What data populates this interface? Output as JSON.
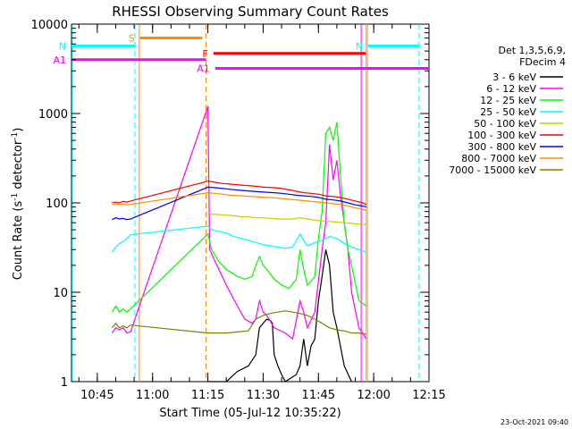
{
  "chart_data": {
    "type": "line",
    "title": "RHESSI Observing Summary Count Rates",
    "xlabel": "Start Time (05-Jul-12 10:35:22)",
    "ylabel": "Count Rate (s",
    "ylabel_sup": "-1",
    "ylabel_mid": " detector",
    "ylabel_sup2": "-1",
    "ylabel_end": ")",
    "yscale": "log",
    "ylim": [
      1,
      10000
    ],
    "xlim_min": [
      38,
      135
    ],
    "x_ticks": [
      {
        "min": 45,
        "label": "10:45"
      },
      {
        "min": 60,
        "label": "11:00"
      },
      {
        "min": 75,
        "label": "11:15"
      },
      {
        "min": 90,
        "label": "11:30"
      },
      {
        "min": 105,
        "label": "11:45"
      },
      {
        "min": 120,
        "label": "12:00"
      },
      {
        "min": 135,
        "label": "12:15"
      }
    ],
    "y_ticks": [
      {
        "v": 1,
        "label": "1"
      },
      {
        "v": 10,
        "label": "10"
      },
      {
        "v": 100,
        "label": "100"
      },
      {
        "v": 1000,
        "label": "1000"
      },
      {
        "v": 10000,
        "label": "10000"
      }
    ],
    "legend_header": [
      "Det 1,3,5,6,9,",
      "FDecim 4"
    ],
    "legend_placement": "right",
    "series": [
      {
        "name": "3 - 6 keV",
        "color": "#000000",
        "points": [
          [
            38,
            null
          ],
          [
            74.7,
            null
          ],
          [
            75,
            1
          ],
          [
            77,
            1
          ],
          [
            80,
            1
          ],
          [
            83,
            1.3
          ],
          [
            86,
            1.5
          ],
          [
            88,
            2
          ],
          [
            89,
            4
          ],
          [
            90,
            4.5
          ],
          [
            91,
            5
          ],
          [
            92,
            4.8
          ],
          [
            92.5,
            4.5
          ],
          [
            93,
            2
          ],
          [
            94,
            1.5
          ],
          [
            95,
            1.2
          ],
          [
            96,
            1
          ],
          [
            99,
            1.2
          ],
          [
            100,
            1.5
          ],
          [
            101,
            3
          ],
          [
            102,
            1.5
          ],
          [
            103,
            2.5
          ],
          [
            104,
            3
          ],
          [
            105,
            8
          ],
          [
            106,
            15
          ],
          [
            107,
            30
          ],
          [
            108,
            20
          ],
          [
            109,
            6
          ],
          [
            110,
            4
          ],
          [
            112,
            1.5
          ],
          [
            114,
            1
          ]
        ]
      },
      {
        "name": "6 - 12 keV",
        "color": "#ff00ff",
        "points": [
          [
            49,
            3.5
          ],
          [
            50,
            4
          ],
          [
            51,
            3.8
          ],
          [
            52,
            4
          ],
          [
            53,
            3.5
          ],
          [
            54,
            3.6
          ],
          [
            75,
            1200
          ],
          [
            75.5,
            30
          ],
          [
            77,
            22
          ],
          [
            80,
            12
          ],
          [
            83,
            7
          ],
          [
            85,
            5
          ],
          [
            87,
            4.5
          ],
          [
            88,
            5
          ],
          [
            89,
            8
          ],
          [
            90,
            6
          ],
          [
            91,
            5.5
          ],
          [
            93,
            4
          ],
          [
            96,
            3.5
          ],
          [
            98,
            3
          ],
          [
            100,
            8
          ],
          [
            101,
            6
          ],
          [
            102,
            4
          ],
          [
            104,
            6
          ],
          [
            106,
            30
          ],
          [
            107,
            60
          ],
          [
            108,
            450
          ],
          [
            109,
            180
          ],
          [
            110,
            300
          ],
          [
            111,
            120
          ],
          [
            112,
            60
          ],
          [
            113,
            30
          ],
          [
            114,
            10
          ],
          [
            116,
            4
          ],
          [
            118,
            3
          ]
        ]
      },
      {
        "name": "12 - 25 keV",
        "color": "#00ff00",
        "points": [
          [
            49,
            6
          ],
          [
            50,
            7
          ],
          [
            51,
            6
          ],
          [
            52,
            6.5
          ],
          [
            53,
            6
          ],
          [
            54,
            6.5
          ],
          [
            75,
            45
          ],
          [
            76,
            30
          ],
          [
            78,
            22
          ],
          [
            80,
            18
          ],
          [
            83,
            15
          ],
          [
            85,
            14
          ],
          [
            87,
            15
          ],
          [
            88,
            20
          ],
          [
            89,
            25
          ],
          [
            90,
            20
          ],
          [
            91,
            18
          ],
          [
            93,
            14
          ],
          [
            95,
            12
          ],
          [
            97,
            11
          ],
          [
            99,
            14
          ],
          [
            100,
            30
          ],
          [
            101,
            18
          ],
          [
            102,
            12
          ],
          [
            104,
            15
          ],
          [
            105,
            40
          ],
          [
            106,
            80
          ],
          [
            107,
            600
          ],
          [
            108,
            700
          ],
          [
            109,
            500
          ],
          [
            110,
            800
          ],
          [
            111,
            200
          ],
          [
            112,
            60
          ],
          [
            113,
            30
          ],
          [
            114,
            20
          ],
          [
            116,
            8
          ],
          [
            118,
            7
          ]
        ]
      },
      {
        "name": "25 - 50 keV",
        "color": "#00ffff",
        "points": [
          [
            49,
            28
          ],
          [
            50,
            32
          ],
          [
            51,
            35
          ],
          [
            52,
            37
          ],
          [
            53,
            40
          ],
          [
            54,
            44
          ],
          [
            75,
            55
          ],
          [
            76,
            50
          ],
          [
            78,
            48
          ],
          [
            80,
            46
          ],
          [
            82,
            42
          ],
          [
            84,
            40
          ],
          [
            86,
            38
          ],
          [
            88,
            36
          ],
          [
            90,
            34
          ],
          [
            92,
            33
          ],
          [
            94,
            32
          ],
          [
            96,
            31
          ],
          [
            98,
            32
          ],
          [
            100,
            45
          ],
          [
            101,
            38
          ],
          [
            102,
            33
          ],
          [
            104,
            36
          ],
          [
            106,
            38
          ],
          [
            108,
            42
          ],
          [
            110,
            40
          ],
          [
            112,
            35
          ],
          [
            114,
            32
          ],
          [
            116,
            30
          ],
          [
            118,
            28
          ]
        ]
      },
      {
        "name": "50 - 100 keV",
        "color": "#cccc00",
        "points": [
          [
            75,
            75
          ],
          [
            78,
            74
          ],
          [
            80,
            73
          ],
          [
            82,
            72
          ],
          [
            84,
            70
          ],
          [
            86,
            70
          ],
          [
            88,
            68
          ],
          [
            90,
            68
          ],
          [
            92,
            67
          ],
          [
            94,
            66
          ],
          [
            96,
            66
          ],
          [
            98,
            66
          ],
          [
            100,
            68
          ],
          [
            102,
            66
          ],
          [
            104,
            64
          ],
          [
            106,
            63
          ],
          [
            108,
            62
          ],
          [
            110,
            61
          ],
          [
            112,
            60
          ],
          [
            114,
            59
          ],
          [
            116,
            58
          ],
          [
            118,
            57
          ]
        ]
      },
      {
        "name": "100 - 300 keV",
        "color": "#ff0000",
        "points": [
          [
            49,
            100
          ],
          [
            50,
            102
          ],
          [
            51,
            100
          ],
          [
            52,
            104
          ],
          [
            53,
            102
          ],
          [
            54,
            105
          ],
          [
            75,
            175
          ],
          [
            77,
            170
          ],
          [
            79,
            165
          ],
          [
            81,
            162
          ],
          [
            84,
            158
          ],
          [
            87,
            155
          ],
          [
            90,
            150
          ],
          [
            93,
            148
          ],
          [
            95,
            145
          ],
          [
            97,
            140
          ],
          [
            99,
            135
          ],
          [
            101,
            130
          ],
          [
            103,
            128
          ],
          [
            105,
            125
          ],
          [
            107,
            120
          ],
          [
            109,
            118
          ],
          [
            111,
            115
          ],
          [
            113,
            110
          ],
          [
            115,
            105
          ],
          [
            117,
            100
          ],
          [
            118,
            95
          ]
        ]
      },
      {
        "name": "300 - 800 keV",
        "color": "#0000ff",
        "points": [
          [
            49,
            65
          ],
          [
            50,
            68
          ],
          [
            51,
            66
          ],
          [
            52,
            67
          ],
          [
            53,
            65
          ],
          [
            54,
            66
          ],
          [
            75,
            150
          ],
          [
            77,
            148
          ],
          [
            79,
            145
          ],
          [
            81,
            142
          ],
          [
            84,
            138
          ],
          [
            87,
            135
          ],
          [
            90,
            132
          ],
          [
            93,
            130
          ],
          [
            95,
            128
          ],
          [
            97,
            125
          ],
          [
            99,
            122
          ],
          [
            101,
            120
          ],
          [
            103,
            118
          ],
          [
            105,
            115
          ],
          [
            107,
            110
          ],
          [
            109,
            108
          ],
          [
            111,
            105
          ],
          [
            113,
            100
          ],
          [
            115,
            95
          ],
          [
            117,
            92
          ],
          [
            118,
            90
          ]
        ]
      },
      {
        "name": "800 - 7000 keV",
        "color": "#ff8c00",
        "points": [
          [
            49,
            95
          ],
          [
            50,
            98
          ],
          [
            51,
            96
          ],
          [
            52,
            97
          ],
          [
            53,
            95
          ],
          [
            54,
            96
          ],
          [
            75,
            130
          ],
          [
            77,
            128
          ],
          [
            79,
            125
          ],
          [
            81,
            122
          ],
          [
            84,
            120
          ],
          [
            87,
            118
          ],
          [
            90,
            116
          ],
          [
            93,
            114
          ],
          [
            95,
            112
          ],
          [
            97,
            110
          ],
          [
            99,
            108
          ],
          [
            101,
            106
          ],
          [
            103,
            104
          ],
          [
            105,
            102
          ],
          [
            107,
            100
          ],
          [
            109,
            98
          ],
          [
            111,
            96
          ],
          [
            113,
            92
          ],
          [
            115,
            88
          ],
          [
            117,
            85
          ],
          [
            118,
            82
          ]
        ]
      },
      {
        "name": "7000 - 15000 keV",
        "color": "#808000",
        "points": [
          [
            49,
            4
          ],
          [
            50,
            4.5
          ],
          [
            51,
            4
          ],
          [
            52,
            4.2
          ],
          [
            53,
            4
          ],
          [
            54,
            4.3
          ],
          [
            75,
            3.5
          ],
          [
            78,
            3.5
          ],
          [
            80,
            3.5
          ],
          [
            83,
            3.6
          ],
          [
            86,
            3.7
          ],
          [
            88,
            5
          ],
          [
            90,
            5.5
          ],
          [
            92,
            5.8
          ],
          [
            94,
            6
          ],
          [
            96,
            6.2
          ],
          [
            98,
            6
          ],
          [
            100,
            5.8
          ],
          [
            102,
            5.5
          ],
          [
            104,
            5
          ],
          [
            106,
            4.5
          ],
          [
            108,
            4
          ],
          [
            110,
            3.8
          ],
          [
            112,
            3.7
          ],
          [
            114,
            3.5
          ],
          [
            116,
            3.5
          ],
          [
            118,
            3.4
          ]
        ]
      }
    ],
    "state_bars": [
      {
        "label": "S",
        "color": "#ff8c00",
        "x0": 56.6,
        "x1": 73.5,
        "y": 7000
      },
      {
        "label": "N",
        "color": "#00ffff",
        "x0": 38,
        "x1": 55.2,
        "y": 5700
      },
      {
        "label": "N",
        "color": "#00ffff",
        "x0": 118.5,
        "x1": 132.5,
        "y": 5700
      },
      {
        "label": "F",
        "color": "#ff0000",
        "x0": 76.5,
        "x1": 117.8,
        "y": 4700
      },
      {
        "label": "A1",
        "color": "#ff00ff",
        "x0": 38,
        "x1": 74.5,
        "y": 4000
      },
      {
        "label": "A1",
        "color": "#ff00ff",
        "x0": 77,
        "x1": 135,
        "y": 3200
      }
    ],
    "vlines": [
      {
        "x": 38.2,
        "color": "#00ffff",
        "dash": false
      },
      {
        "x": 55.2,
        "color": "#00ffff",
        "dash": true
      },
      {
        "x": 56.4,
        "color": "#ff8c00",
        "dash": false
      },
      {
        "x": 74.5,
        "color": "#ff8c00",
        "dash": true
      },
      {
        "x": 117.9,
        "color": "#00ffff",
        "dash": false
      },
      {
        "x": 116.6,
        "color": "#ff00ff",
        "dash": false
      },
      {
        "x": 118.3,
        "color": "#ff8c00",
        "dash": false
      },
      {
        "x": 132.3,
        "color": "#00ffff",
        "dash": true
      }
    ],
    "timestamp": "23-Oct-2021 09:40"
  }
}
